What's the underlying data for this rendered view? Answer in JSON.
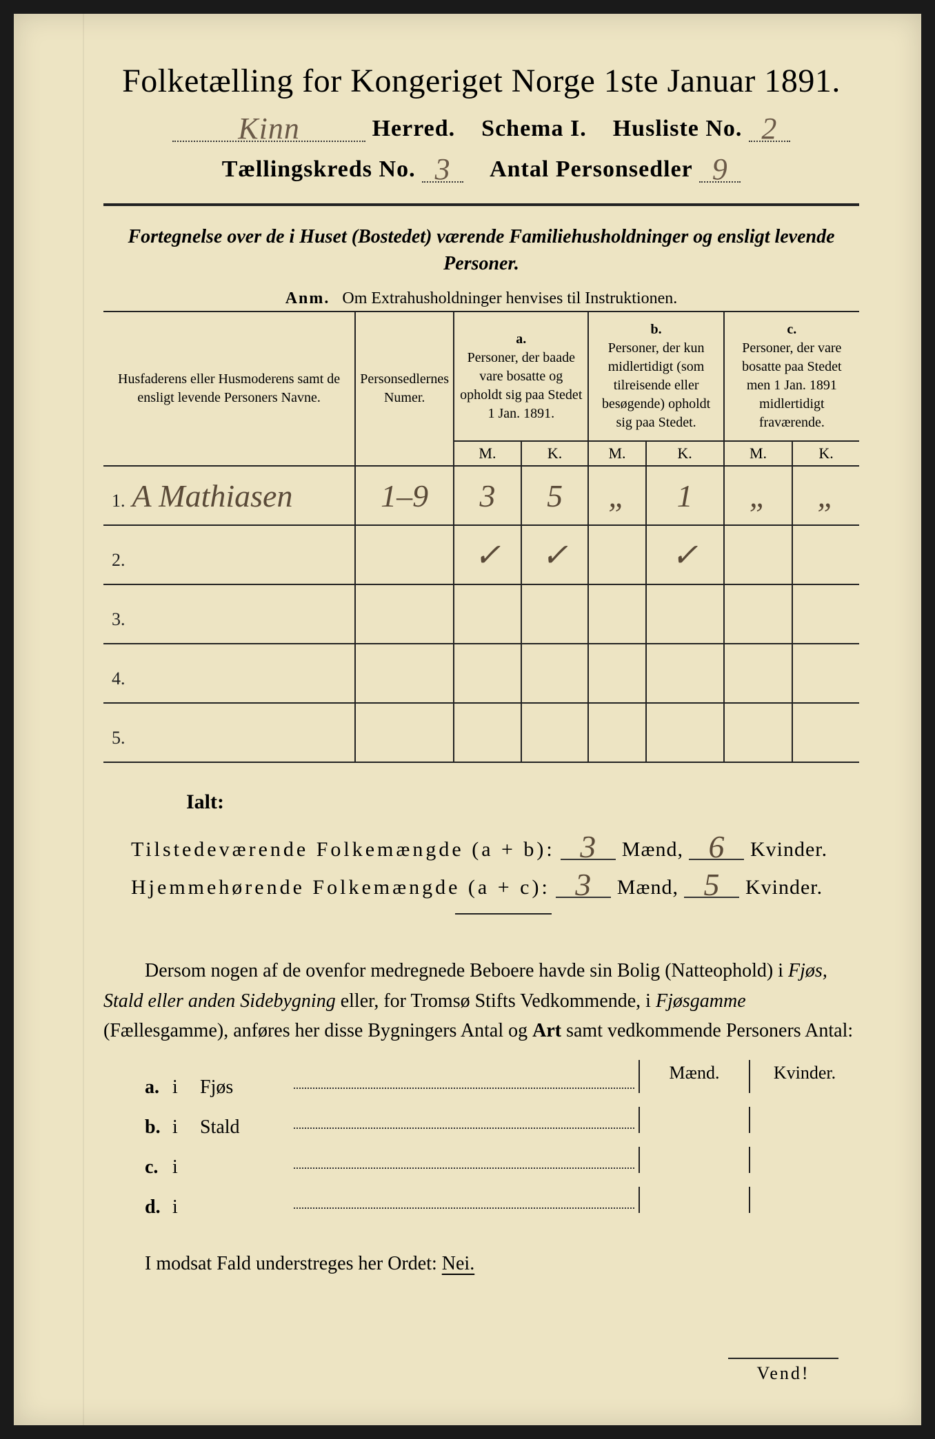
{
  "colors": {
    "paper": "#ede4c3",
    "ink": "#222222",
    "handwriting": "#5a4a38"
  },
  "title": "Folketælling for Kongeriget Norge 1ste Januar 1891.",
  "header": {
    "herred_label": "Herred.",
    "herred_value": "Kinn",
    "schema_label": "Schema I.",
    "husliste_label": "Husliste No.",
    "husliste_value": "2",
    "kreds_label": "Tællingskreds No.",
    "kreds_value": "3",
    "antal_label": "Antal Personsedler",
    "antal_value": "9"
  },
  "intro": "Fortegnelse over de i Huset (Bostedet) værende Familiehusholdninger og ensligt levende Personer.",
  "anm_prefix": "Anm.",
  "anm_text": "Om Extrahusholdninger henvises til Instruktionen.",
  "table": {
    "col_name": "Husfaderens eller Husmoderens samt de ensligt levende Personers Navne.",
    "col_num": "Personsedlernes Numer.",
    "col_a_letter": "a.",
    "col_a": "Personer, der baade vare bosatte og opholdt sig paa Stedet 1 Jan. 1891.",
    "col_b_letter": "b.",
    "col_b": "Personer, der kun midlertidigt (som tilreisende eller besøgende) opholdt sig paa Stedet.",
    "col_c_letter": "c.",
    "col_c": "Personer, der vare bosatte paa Stedet men 1 Jan. 1891 midlertidigt fraværende.",
    "m": "M.",
    "k": "K.",
    "rows": [
      {
        "num": "1.",
        "name": "A Mathiasen",
        "sedler": "1–9",
        "am": "3",
        "ak": "5",
        "bm": "„",
        "bk": "1",
        "cm": "„",
        "ck": "„"
      },
      {
        "num": "2.",
        "name": "",
        "sedler": "",
        "am": "✓",
        "ak": "✓",
        "bm": "",
        "bk": "✓",
        "cm": "",
        "ck": ""
      },
      {
        "num": "3.",
        "name": "",
        "sedler": "",
        "am": "",
        "ak": "",
        "bm": "",
        "bk": "",
        "cm": "",
        "ck": ""
      },
      {
        "num": "4.",
        "name": "",
        "sedler": "",
        "am": "",
        "ak": "",
        "bm": "",
        "bk": "",
        "cm": "",
        "ck": ""
      },
      {
        "num": "5.",
        "name": "",
        "sedler": "",
        "am": "",
        "ak": "",
        "bm": "",
        "bk": "",
        "cm": "",
        "ck": ""
      }
    ]
  },
  "ialt": "Ialt:",
  "summary": {
    "line1_label": "Tilstedeværende Folkemængde (a + b):",
    "line1_m": "3",
    "line1_k": "6",
    "line2_label": "Hjemmehørende Folkemængde (a + c):",
    "line2_m": "3",
    "line2_k": "5",
    "maend": "Mænd,",
    "kvinder": "Kvinder."
  },
  "para": "Dersom nogen af de ovenfor medregnede Beboere havde sin Bolig (Natteophold) i Fjøs, Stald eller anden Sidebygning eller, for Tromsø Stifts Vedkommende, i Fjøsgamme (Fællesgamme), anføres her disse Bygningers Antal og Art samt vedkommende Personers Antal:",
  "buildings": {
    "head_m": "Mænd.",
    "head_k": "Kvinder.",
    "rows": [
      {
        "k": "a.",
        "i": "i",
        "n": "Fjøs"
      },
      {
        "k": "b.",
        "i": "i",
        "n": "Stald"
      },
      {
        "k": "c.",
        "i": "i",
        "n": ""
      },
      {
        "k": "d.",
        "i": "i",
        "n": ""
      }
    ]
  },
  "modsat_prefix": "I modsat Fald understreges her Ordet:",
  "modsat_nei": "Nei.",
  "vend": "Vend!"
}
